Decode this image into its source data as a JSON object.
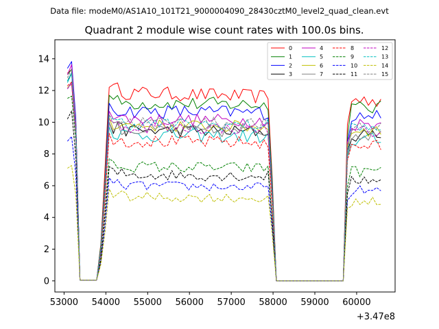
{
  "suptitle": "Data file: modeM0/AS1A10_101T21_9000004090_28430cztM0_level2_quad_clean.evt",
  "chart_data": {
    "type": "line",
    "title": "Quadrant 2 module wise count rates with 100.0s bins.",
    "xlabel": "",
    "ylabel": "",
    "x_offset_label": "+3.47e8",
    "xlim": [
      52780,
      60920
    ],
    "ylim": [
      -0.7,
      15.2
    ],
    "x_ticks": [
      53000,
      54000,
      55000,
      56000,
      57000,
      58000,
      59000,
      60000
    ],
    "x_tick_labels": [
      "53000",
      "54000",
      "55000",
      "56000",
      "57000",
      "58000",
      "59000",
      "60000"
    ],
    "y_ticks": [
      0,
      2,
      4,
      6,
      8,
      10,
      12,
      14
    ],
    "y_tick_labels": [
      "0",
      "2",
      "4",
      "6",
      "8",
      "10",
      "12",
      "14"
    ],
    "legend_position": "top-right",
    "legend_columns": 4,
    "segments": [
      {
        "name": "start",
        "x": [
          53080,
          53180,
          53280
        ],
        "factors": [
          1.2,
          1.22,
          0.92
        ]
      },
      {
        "name": "gap1",
        "x": [
          53380,
          53480,
          53580,
          53680,
          53780
        ],
        "factors": [
          0.0,
          0.0,
          0.0,
          0.0,
          0.0
        ]
      },
      {
        "name": "ramp1",
        "x": [
          53880,
          53980
        ],
        "factors": [
          0.2,
          0.6
        ]
      },
      {
        "name": "plateau1",
        "x_start": 54080,
        "x_end": 57880,
        "step": 100
      },
      {
        "name": "fall1",
        "x": [
          57980
        ],
        "factors": [
          0.55
        ]
      },
      {
        "name": "gap2",
        "x_start": 58080,
        "x_end": 59680,
        "step": 100,
        "value": 0
      },
      {
        "name": "ramp2",
        "x": [
          59780
        ],
        "factors": [
          0.85
        ]
      },
      {
        "name": "plateau2",
        "x_start": 59880,
        "x_end": 60580,
        "step": 100
      }
    ],
    "series": [
      {
        "name": "0",
        "color": "#ff0000",
        "style": "solid",
        "level": 11.6,
        "start": 13.1,
        "amp": 0.45
      },
      {
        "name": "1",
        "color": "#008000",
        "style": "solid",
        "level": 11.1,
        "start": 13.0,
        "amp": 0.45
      },
      {
        "name": "2",
        "color": "#0000ff",
        "style": "solid",
        "level": 10.6,
        "start": 13.4,
        "amp": 0.45
      },
      {
        "name": "3",
        "color": "#000000",
        "style": "solid",
        "level": 9.4,
        "start": 12.6,
        "amp": 0.4
      },
      {
        "name": "4",
        "color": "#bf00bf",
        "style": "solid",
        "level": 10.1,
        "start": 13.0,
        "amp": 0.4
      },
      {
        "name": "5",
        "color": "#00bfbf",
        "style": "solid",
        "level": 9.1,
        "start": 12.5,
        "amp": 0.45
      },
      {
        "name": "6",
        "color": "#bfbf00",
        "style": "solid",
        "level": 9.7,
        "start": 12.2,
        "amp": 0.4
      },
      {
        "name": "7",
        "color": "#808080",
        "style": "solid",
        "level": 9.4,
        "start": 12.1,
        "amp": 0.4
      },
      {
        "name": "8",
        "color": "#ff0000",
        "style": "dashed",
        "level": 8.7,
        "start": 12.3,
        "amp": 0.4
      },
      {
        "name": "9",
        "color": "#008000",
        "style": "dashed",
        "level": 7.1,
        "start": 11.5,
        "amp": 0.35
      },
      {
        "name": "10",
        "color": "#0000ff",
        "style": "dashed",
        "level": 5.9,
        "start": 8.8,
        "amp": 0.3
      },
      {
        "name": "11",
        "color": "#000000",
        "style": "dashed",
        "level": 6.6,
        "start": 10.2,
        "amp": 0.35
      },
      {
        "name": "12",
        "color": "#bf00bf",
        "style": "dashed",
        "level": 9.6,
        "start": 12.1,
        "amp": 0.4
      },
      {
        "name": "13",
        "color": "#00bfbf",
        "style": "dashed",
        "level": 9.8,
        "start": 12.6,
        "amp": 0.4
      },
      {
        "name": "14",
        "color": "#bfbf00",
        "style": "dashed",
        "level": 5.2,
        "start": 7.1,
        "amp": 0.3
      },
      {
        "name": "15",
        "color": "#808080",
        "style": "dashed",
        "level": 9.9,
        "start": 12.8,
        "amp": 0.4
      }
    ]
  }
}
